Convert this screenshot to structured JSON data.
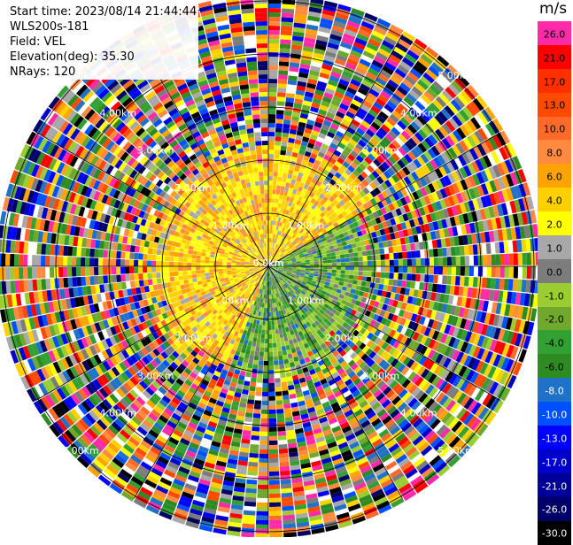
{
  "header": {
    "start_time": "Start time: 2023/08/14 21:44:44",
    "instrument": "WLS200s-181",
    "field": "Field: VEL",
    "elevation": "Elevation(deg): 35.30",
    "nrays": "NRays: 120"
  },
  "chart_data": {
    "type": "heatmap",
    "projection": "polar-ppi",
    "field": "VEL",
    "units": "m/s",
    "nrays": 120,
    "range_ring_labels": [
      "0.0km",
      "1.00km",
      "2.00km",
      "3.00km",
      "4.00km",
      "5.00km"
    ],
    "colorbar": {
      "unit_label": "m/s",
      "tick_labels": [
        "26.0",
        "21.0",
        "17.0",
        "13.0",
        "10.0",
        "8.0",
        "6.0",
        "4.0",
        "2.0",
        "1.0",
        "0.0",
        "-1.0",
        "-2.0",
        "-4.0",
        "-6.0",
        "-8.0",
        "-10.0",
        "-13.0",
        "-17.0",
        "-21.0",
        "-26.0",
        "-30.0"
      ],
      "colors": [
        "#ff2aa8",
        "#ff0000",
        "#ff2f00",
        "#ff4a00",
        "#ff6a2a",
        "#ff8a40",
        "#ffa300",
        "#ffd000",
        "#ffff00",
        "#a8a8a8",
        "#7c7c7c",
        "#9acd32",
        "#6fa82c",
        "#32a032",
        "#2e8b22",
        "#1f72c8",
        "#0050ff",
        "#0000ff",
        "#0000cd",
        "#000099",
        "#000066",
        "#000000"
      ]
    },
    "near_field": {
      "description_sectors": [
        {
          "azimuth_start": 200,
          "azimuth_end": 60,
          "max_range_km": 2.2,
          "color_class": "warm"
        },
        {
          "azimuth_start": 60,
          "azimuth_end": 200,
          "max_range_km": 2.0,
          "color_class": "cool"
        }
      ]
    }
  }
}
